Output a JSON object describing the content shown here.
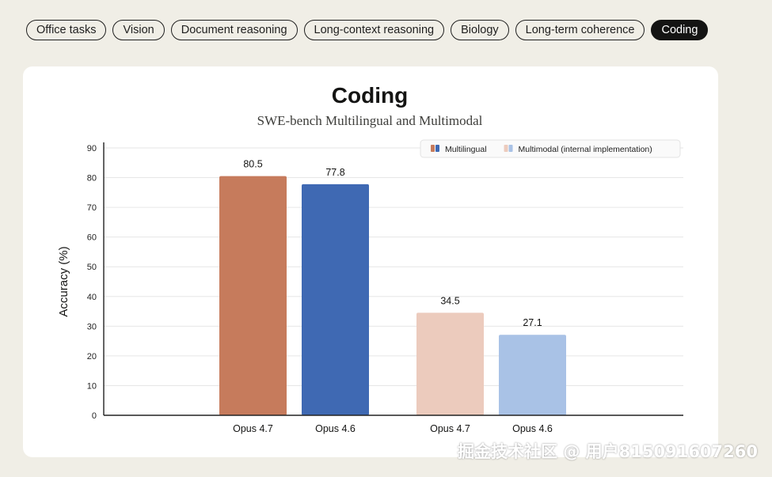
{
  "tabs": [
    {
      "label": "Office tasks",
      "active": false
    },
    {
      "label": "Vision",
      "active": false
    },
    {
      "label": "Document reasoning",
      "active": false
    },
    {
      "label": "Long-context reasoning",
      "active": false
    },
    {
      "label": "Biology",
      "active": false
    },
    {
      "label": "Long-term coherence",
      "active": false
    },
    {
      "label": "Coding",
      "active": true
    }
  ],
  "chart_data": {
    "type": "bar",
    "title": "Coding",
    "subtitle": "SWE-bench Multilingual and Multimodal",
    "ylabel": "Accuracy (%)",
    "xlabel": "",
    "ylim": [
      0,
      90
    ],
    "yticks": [
      0,
      10,
      20,
      30,
      40,
      50,
      60,
      70,
      80,
      90
    ],
    "grid": true,
    "legend_position": "top-right",
    "groups": [
      {
        "series": "Multilingual",
        "bars": [
          {
            "label": "Opus 4.7",
            "value": 80.5,
            "value_label": "80.5",
            "color": "#c67b5c"
          },
          {
            "label": "Opus 4.6",
            "value": 77.8,
            "value_label": "77.8",
            "color": "#3f69b3"
          }
        ]
      },
      {
        "series": "Multimodal (internal implementation)",
        "bars": [
          {
            "label": "Opus 4.7",
            "value": 34.5,
            "value_label": "34.5",
            "color": "#eccbbd"
          },
          {
            "label": "Opus 4.6",
            "value": 27.1,
            "value_label": "27.1",
            "color": "#a9c2e6"
          }
        ]
      }
    ],
    "legend": [
      {
        "name": "Multilingual",
        "colors": [
          "#c67b5c",
          "#3f69b3"
        ]
      },
      {
        "name": "Multimodal (internal implementation)",
        "colors": [
          "#eccbbd",
          "#a9c2e6"
        ]
      }
    ]
  },
  "watermark": "掘金技术社区 @ 用户815091607260"
}
